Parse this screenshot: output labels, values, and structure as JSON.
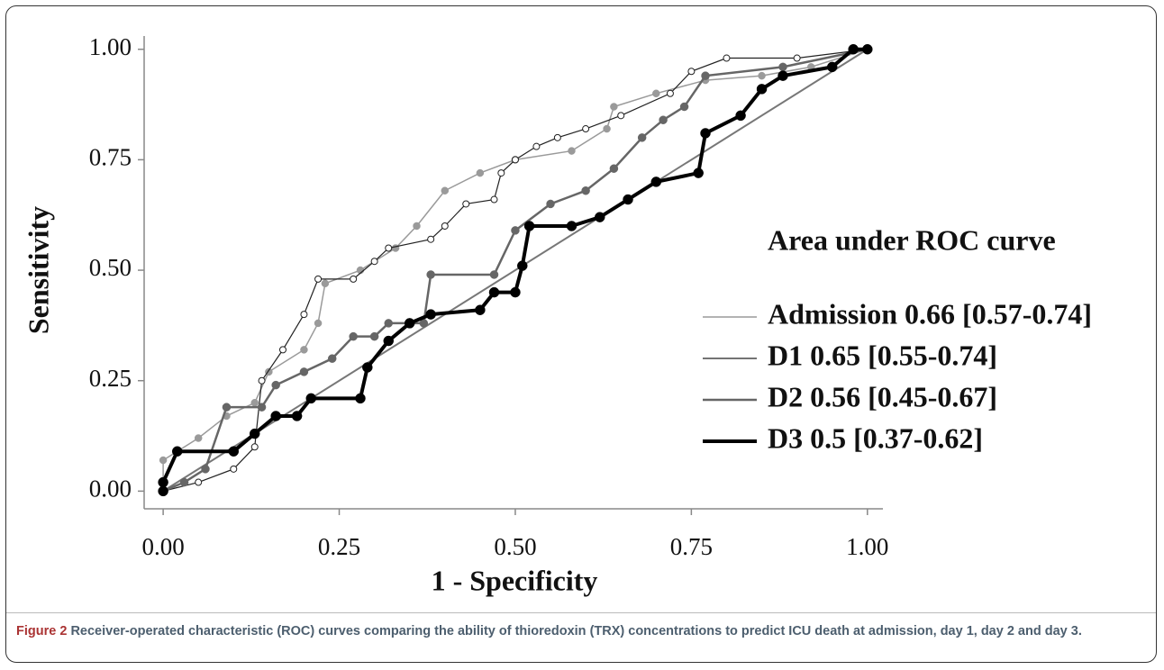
{
  "chart_data": {
    "type": "line",
    "xlabel": "1 - Specificity",
    "ylabel": "Sensitivity",
    "legend_title": "Area under ROC curve",
    "legend": "right",
    "xlim": [
      -0.027,
      1.022
    ],
    "ylim": [
      -0.04,
      1.03
    ],
    "xticks": [
      {
        "value": 0,
        "label": "0.00"
      },
      {
        "value": 0.25,
        "label": "0.25"
      },
      {
        "value": 0.5,
        "label": "0.50"
      },
      {
        "value": 0.75,
        "label": "0.75"
      },
      {
        "value": 1,
        "label": "1.00"
      }
    ],
    "yticks": [
      {
        "value": 0,
        "label": "0.00"
      },
      {
        "value": 0.25,
        "label": "0.25"
      },
      {
        "value": 0.5,
        "label": "0.50"
      },
      {
        "value": 0.75,
        "label": "0.75"
      },
      {
        "value": 1,
        "label": "1.00"
      }
    ],
    "series": [
      {
        "name": "Admission 0.66 [0.57-0.74]",
        "color": "#9a9a9a",
        "x": [
          0,
          0,
          0.02,
          0.05,
          0.09,
          0.13,
          0.15,
          0.2,
          0.22,
          0.23,
          0.28,
          0.33,
          0.36,
          0.4,
          0.45,
          0.5,
          0.58,
          0.63,
          0.64,
          0.7,
          0.77,
          0.85,
          0.92,
          1
        ],
        "values": [
          0,
          0.07,
          0.09,
          0.12,
          0.17,
          0.2,
          0.27,
          0.32,
          0.38,
          0.47,
          0.5,
          0.55,
          0.6,
          0.68,
          0.72,
          0.75,
          0.77,
          0.82,
          0.87,
          0.9,
          0.93,
          0.94,
          0.96,
          1
        ]
      },
      {
        "name": "D1 0.65 [0.55-0.74]",
        "color": "#222222",
        "x": [
          0,
          0.05,
          0.1,
          0.13,
          0.14,
          0.17,
          0.2,
          0.22,
          0.27,
          0.3,
          0.32,
          0.38,
          0.4,
          0.43,
          0.47,
          0.48,
          0.5,
          0.53,
          0.56,
          0.6,
          0.65,
          0.72,
          0.75,
          0.8,
          0.9,
          1
        ],
        "values": [
          0,
          0.02,
          0.05,
          0.1,
          0.25,
          0.32,
          0.4,
          0.48,
          0.48,
          0.52,
          0.55,
          0.57,
          0.6,
          0.65,
          0.66,
          0.72,
          0.75,
          0.78,
          0.8,
          0.82,
          0.85,
          0.9,
          0.95,
          0.98,
          0.98,
          1
        ]
      },
      {
        "name": "D2 0.56 [0.45-0.67]",
        "color": "#666666",
        "x": [
          0,
          0.03,
          0.06,
          0.09,
          0.14,
          0.16,
          0.2,
          0.24,
          0.27,
          0.3,
          0.32,
          0.37,
          0.38,
          0.47,
          0.5,
          0.55,
          0.6,
          0.64,
          0.68,
          0.71,
          0.74,
          0.77,
          0.88,
          1
        ],
        "values": [
          0,
          0.02,
          0.05,
          0.19,
          0.19,
          0.24,
          0.27,
          0.3,
          0.35,
          0.35,
          0.38,
          0.38,
          0.49,
          0.49,
          0.59,
          0.65,
          0.68,
          0.73,
          0.8,
          0.84,
          0.87,
          0.94,
          0.96,
          1
        ]
      },
      {
        "name": "D3 0.5 [0.37-0.62]",
        "color": "#000000",
        "x": [
          0,
          0,
          0.02,
          0.1,
          0.13,
          0.16,
          0.19,
          0.21,
          0.28,
          0.29,
          0.32,
          0.35,
          0.38,
          0.45,
          0.47,
          0.5,
          0.51,
          0.52,
          0.58,
          0.62,
          0.66,
          0.7,
          0.76,
          0.77,
          0.82,
          0.85,
          0.88,
          0.95,
          0.98,
          1
        ],
        "values": [
          0,
          0.02,
          0.09,
          0.09,
          0.13,
          0.17,
          0.17,
          0.21,
          0.21,
          0.28,
          0.34,
          0.38,
          0.4,
          0.41,
          0.45,
          0.45,
          0.51,
          0.6,
          0.6,
          0.62,
          0.66,
          0.7,
          0.72,
          0.81,
          0.85,
          0.91,
          0.94,
          0.96,
          1,
          1
        ]
      }
    ]
  },
  "caption": {
    "label": "Figure 2",
    "text": "Receiver-operated characteristic (ROC) curves comparing the ability of thioredoxin (TRX) concentrations to predict ICU death at admission, day 1, day 2 and day 3."
  }
}
